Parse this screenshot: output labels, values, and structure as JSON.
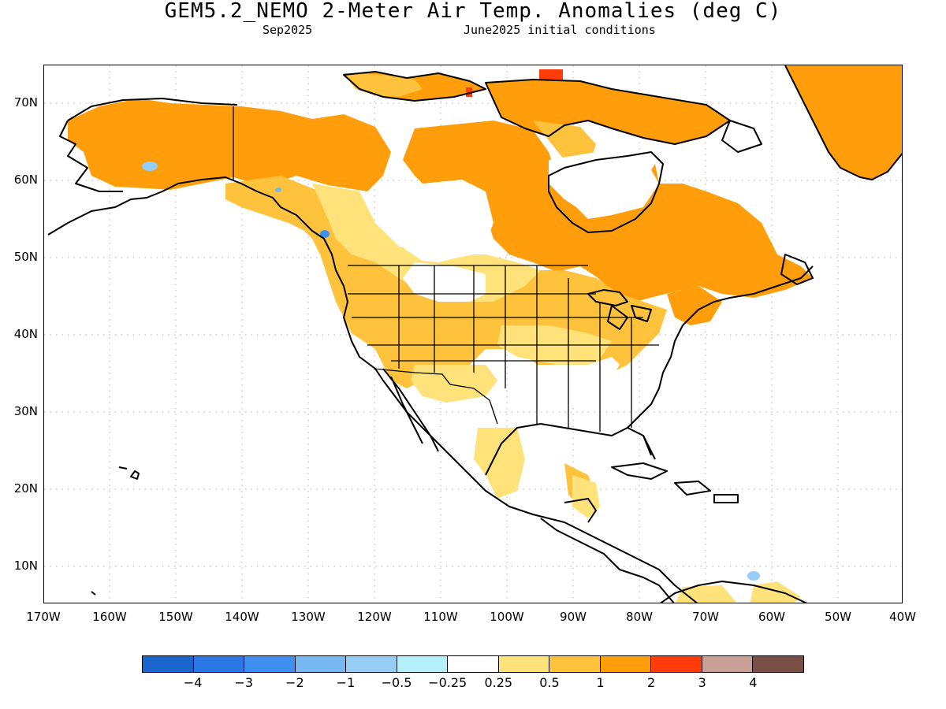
{
  "header": {
    "title": "GEM5.2_NEMO 2-Meter Air Temp. Anomalies (deg C)",
    "valid_month": "Sep2025",
    "initial_conditions": "June2025 initial conditions"
  },
  "map": {
    "lat_labels": [
      "70N",
      "60N",
      "50N",
      "40N",
      "30N",
      "20N",
      "10N"
    ],
    "lon_labels": [
      "170W",
      "160W",
      "150W",
      "140W",
      "130W",
      "120W",
      "110W",
      "100W",
      "90W",
      "80W",
      "70W",
      "60W",
      "50W",
      "40W"
    ],
    "grid": "dotted",
    "land_outline_color": "#000000"
  },
  "colorbar": {
    "colors": [
      "#1a66cc",
      "#2a78e6",
      "#3e8ff0",
      "#78b8f2",
      "#96cdf6",
      "#b4f0fa",
      "#ffffff",
      "#ffe27a",
      "#ffc23c",
      "#ff9e0a",
      "#ff3c0a",
      "#c8a096",
      "#7a5046"
    ],
    "labels": [
      "−4",
      "−3",
      "−2",
      "−1",
      "−0.5",
      "−0.25",
      "0.25",
      "0.5",
      "1",
      "2",
      "3",
      "4"
    ]
  }
}
